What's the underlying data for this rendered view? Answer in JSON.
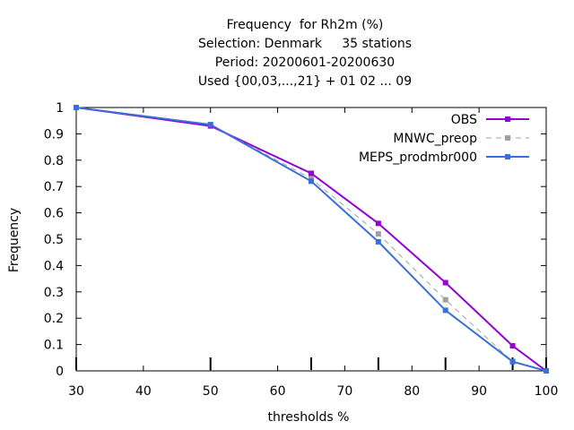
{
  "chart_data": {
    "type": "line",
    "title_lines": [
      "Frequency  for Rh2m (%)",
      "Selection: Denmark     35 stations",
      "Period: 20200601-20200630",
      "Used {00,03,...,21} + 01 02 ... 09"
    ],
    "xlabel": "thresholds %",
    "ylabel": "Frequency",
    "xlim": [
      30,
      100
    ],
    "ylim": [
      0,
      1
    ],
    "x_ticks": [
      "30",
      "40",
      "50",
      "60",
      "70",
      "80",
      "90",
      "100"
    ],
    "y_ticks": [
      "0",
      "0.1",
      "0.2",
      "0.3",
      "0.4",
      "0.5",
      "0.6",
      "0.7",
      "0.8",
      "0.9",
      "1"
    ],
    "threshold_marks": [
      30,
      50,
      65,
      75,
      85,
      95,
      100
    ],
    "grid": false,
    "legend_position": "top-right",
    "series": [
      {
        "name": "OBS",
        "color": "#9400d3",
        "style": "solid",
        "marker": "square",
        "x": [
          30,
          50,
          65,
          75,
          85,
          95,
          100
        ],
        "y": [
          1.0,
          0.93,
          0.75,
          0.56,
          0.335,
          0.095,
          0.0
        ]
      },
      {
        "name": "MNWC_preop",
        "color": "#a0a0a0",
        "style": "dashed",
        "marker": "square",
        "x": [
          30,
          50,
          65,
          75,
          85,
          95,
          100
        ],
        "y": [
          1.0,
          0.935,
          0.73,
          0.52,
          0.27,
          0.035,
          0.0
        ]
      },
      {
        "name": "MEPS_prodmbr000",
        "color": "#3a6fd8",
        "style": "solid",
        "marker": "square",
        "x": [
          30,
          50,
          65,
          75,
          85,
          95,
          100
        ],
        "y": [
          1.0,
          0.935,
          0.72,
          0.49,
          0.23,
          0.035,
          0.0
        ]
      }
    ]
  }
}
